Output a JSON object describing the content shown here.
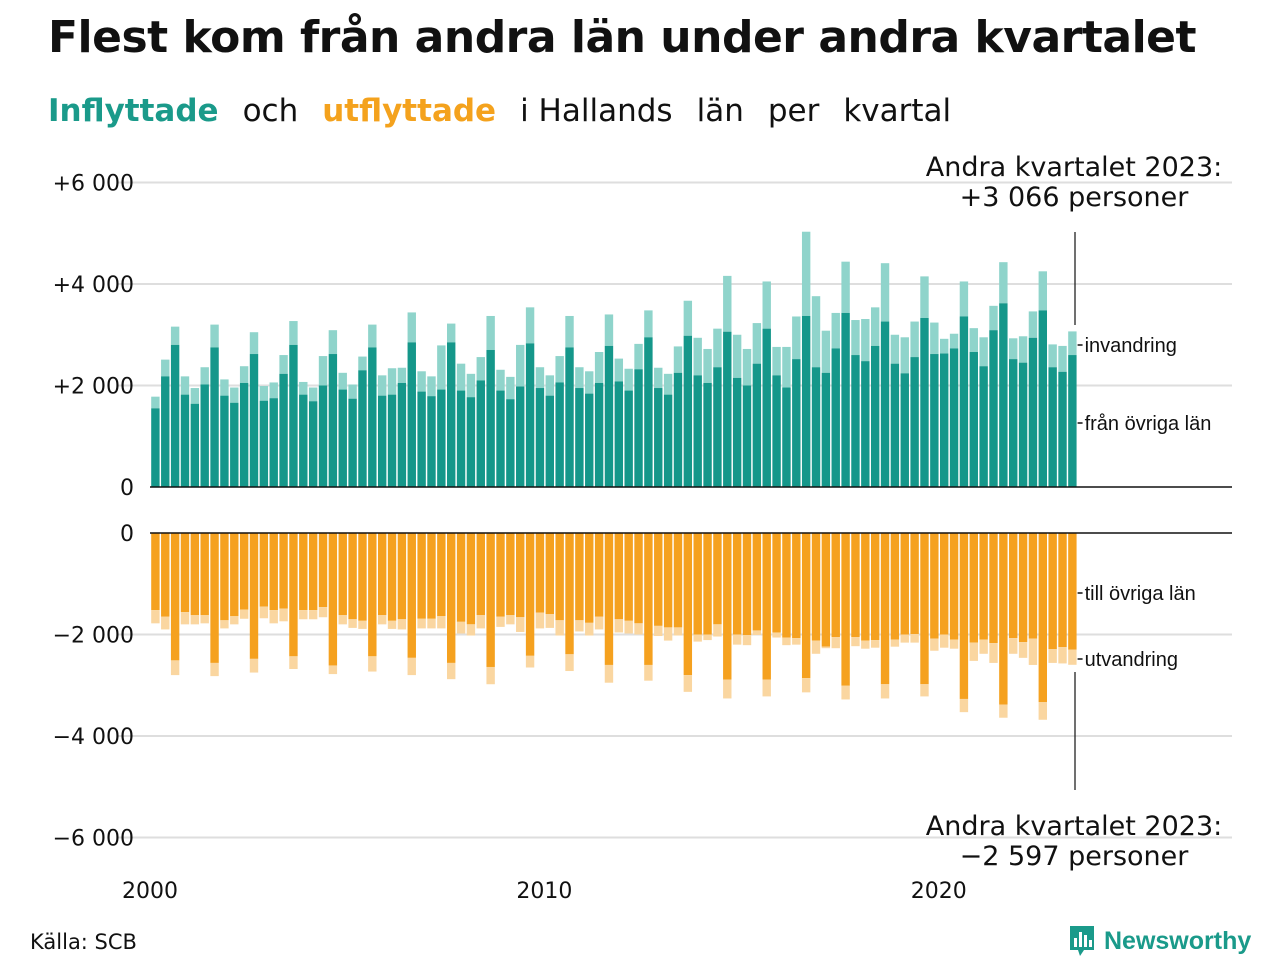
{
  "title": "Flest kom från andra län under andra kvartalet",
  "subtitle": {
    "part1": "Inflyttade",
    "part2": "och",
    "part3": "utflyttade",
    "part4": "i Hallands",
    "part5": "län",
    "part6": "per",
    "part7": "kvartal"
  },
  "source": "Källa: SCB",
  "brand": "Newsworthy",
  "colors": {
    "inflow_dark": "#15978a",
    "inflow_light": "#8fd4cb",
    "outflow_dark": "#f5a11f",
    "outflow_light": "#fad6a0",
    "title_teal": "#1a9a8a",
    "title_orange": "#f4a21d"
  },
  "chart_data": {
    "type": "bar",
    "x_start": "2000 Q1",
    "x_end": "2023 Q2",
    "x_ticks": [
      {
        "label": "2000",
        "year": 2000
      },
      {
        "label": "2010",
        "year": 2010
      },
      {
        "label": "2020",
        "year": 2020
      }
    ],
    "ylim": [
      -6000,
      6000
    ],
    "top_y_ticks": [
      {
        "value": 0,
        "label": "0"
      },
      {
        "value": 2000,
        "label": "+2 000"
      },
      {
        "value": 4000,
        "label": "+4 000"
      },
      {
        "value": 6000,
        "label": "+6 000"
      }
    ],
    "bottom_y_ticks": [
      {
        "value": 0,
        "label": "0"
      },
      {
        "value": -2000,
        "label": "−2 000"
      },
      {
        "value": -4000,
        "label": "−4 000"
      },
      {
        "value": -6000,
        "label": "−6 000"
      }
    ],
    "grid": true,
    "series_labels": {
      "immigration_in": "invandring",
      "from_other_counties": "från övriga län",
      "to_other_counties": "till övriga län",
      "emigration_out": "utvandring"
    },
    "annotations": {
      "top_line1": "Andra kvartalet 2023:",
      "top_line2": "+3 066 personer",
      "bottom_line1": "Andra kvartalet 2023:",
      "bottom_line2": "−2 597 personer"
    },
    "inflow_other_counties": [
      1550,
      2180,
      2800,
      1820,
      1640,
      2020,
      2750,
      1800,
      1660,
      2050,
      2620,
      1700,
      1750,
      2230,
      2800,
      1820,
      1690,
      2000,
      2620,
      1920,
      1740,
      2300,
      2750,
      1800,
      1820,
      2050,
      2850,
      1880,
      1790,
      1920,
      2850,
      1900,
      1770,
      2100,
      2700,
      1900,
      1730,
      1980,
      2830,
      1950,
      1800,
      2060,
      2750,
      1950,
      1840,
      2050,
      2780,
      2080,
      1900,
      2320,
      2950,
      1950,
      1820,
      2250,
      2980,
      2200,
      2050,
      2360,
      3060,
      2150,
      2000,
      2430,
      3120,
      2200,
      1960,
      2520,
      3370,
      2360,
      2250,
      2730,
      3430,
      2600,
      2480,
      2780,
      3260,
      2430,
      2240,
      2560,
      3330,
      2620,
      2630,
      2730,
      3360,
      2660,
      2380,
      3090,
      3620,
      2520,
      2450,
      2940,
      3480,
      2360,
      2270,
      2600
    ],
    "inflow_total": [
      1780,
      2510,
      3160,
      2180,
      1950,
      2360,
      3200,
      2120,
      1960,
      2380,
      3050,
      1990,
      2060,
      2600,
      3270,
      2070,
      1960,
      2580,
      3090,
      2250,
      2020,
      2570,
      3200,
      2200,
      2340,
      2350,
      3440,
      2280,
      2180,
      2790,
      3220,
      2430,
      2230,
      2560,
      3370,
      2310,
      2170,
      2800,
      3540,
      2360,
      2200,
      2580,
      3370,
      2360,
      2280,
      2660,
      3400,
      2530,
      2330,
      2820,
      3480,
      2350,
      2230,
      2770,
      3670,
      2940,
      2720,
      3120,
      4160,
      3000,
      2720,
      3230,
      4050,
      2760,
      2760,
      3360,
      5030,
      3760,
      3080,
      3430,
      4440,
      3290,
      3310,
      3540,
      4410,
      3000,
      2950,
      3260,
      4150,
      3240,
      2920,
      3020,
      4050,
      3130,
      2950,
      3570,
      4430,
      2930,
      2970,
      3460,
      4250,
      2810,
      2780,
      3066
    ],
    "outflow_other_counties": [
      -1520,
      -1650,
      -2510,
      -1560,
      -1620,
      -1620,
      -2560,
      -1720,
      -1640,
      -1510,
      -2480,
      -1450,
      -1520,
      -1490,
      -2430,
      -1520,
      -1520,
      -1460,
      -2610,
      -1620,
      -1700,
      -1730,
      -2430,
      -1620,
      -1730,
      -1700,
      -2460,
      -1690,
      -1690,
      -1640,
      -2560,
      -1750,
      -1800,
      -1620,
      -2640,
      -1650,
      -1620,
      -1660,
      -2420,
      -1570,
      -1600,
      -1720,
      -2390,
      -1720,
      -1770,
      -1650,
      -2600,
      -1700,
      -1730,
      -1780,
      -2600,
      -1830,
      -1860,
      -1860,
      -2800,
      -2000,
      -2000,
      -1800,
      -2890,
      -2000,
      -2010,
      -1920,
      -2890,
      -1960,
      -2060,
      -2070,
      -2860,
      -2120,
      -2240,
      -2050,
      -3010,
      -2050,
      -2120,
      -2110,
      -2980,
      -2100,
      -2000,
      -1990,
      -2980,
      -2080,
      -2000,
      -2100,
      -3270,
      -2160,
      -2100,
      -2170,
      -3380,
      -2070,
      -2150,
      -2080,
      -3330,
      -2290,
      -2250,
      -2300
    ],
    "outflow_total": [
      -1780,
      -1900,
      -2800,
      -1800,
      -1800,
      -1780,
      -2820,
      -1880,
      -1800,
      -1690,
      -2750,
      -1680,
      -1780,
      -1740,
      -2680,
      -1700,
      -1700,
      -1660,
      -2780,
      -1800,
      -1870,
      -1890,
      -2730,
      -1800,
      -1890,
      -1900,
      -2800,
      -1880,
      -1880,
      -1880,
      -2880,
      -1980,
      -2020,
      -1880,
      -2980,
      -1850,
      -1800,
      -1950,
      -2650,
      -1880,
      -1870,
      -2020,
      -2720,
      -1940,
      -2020,
      -1900,
      -2950,
      -1960,
      -1980,
      -2000,
      -2910,
      -2030,
      -2120,
      -2020,
      -3130,
      -2140,
      -2110,
      -2040,
      -3260,
      -2200,
      -2210,
      -2010,
      -3220,
      -2060,
      -2210,
      -2200,
      -3140,
      -2380,
      -2270,
      -2270,
      -3280,
      -2230,
      -2280,
      -2260,
      -3260,
      -2240,
      -2160,
      -2160,
      -3220,
      -2320,
      -2260,
      -2280,
      -3530,
      -2520,
      -2380,
      -2560,
      -3640,
      -2380,
      -2460,
      -2600,
      -3680,
      -2560,
      -2570,
      -2597
    ]
  }
}
